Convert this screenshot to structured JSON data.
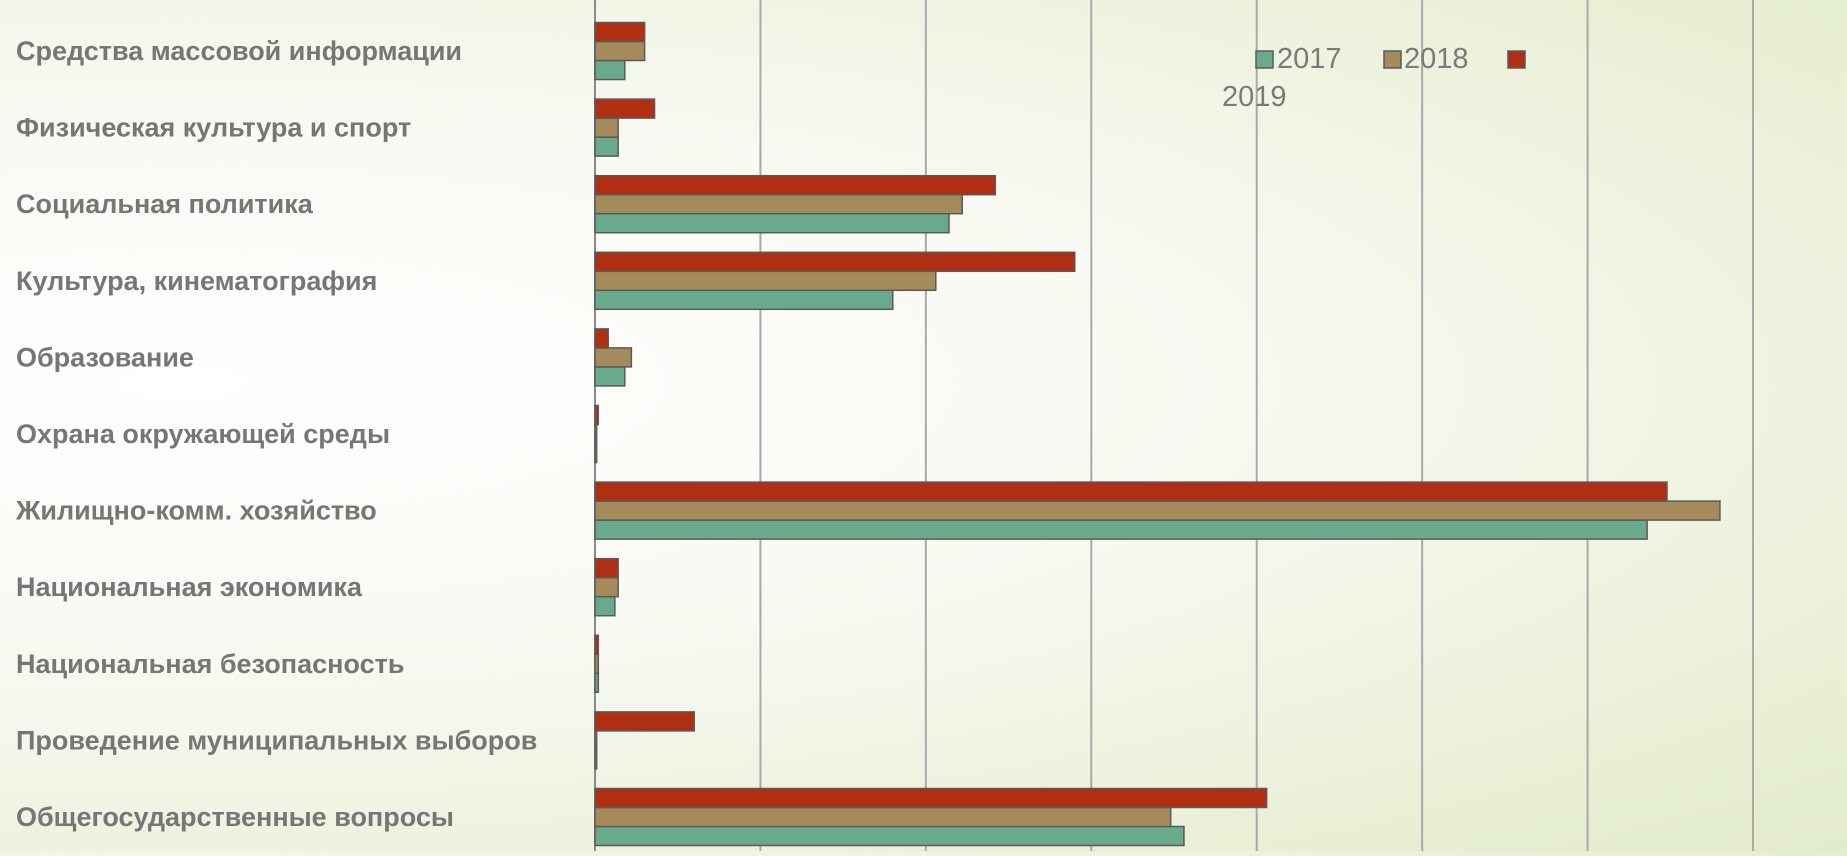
{
  "chart_data": {
    "type": "bar",
    "orientation": "horizontal",
    "title": "",
    "xlabel": "",
    "ylabel": "",
    "grid": true,
    "legend_position": "top-right",
    "xlim": [
      0,
      350
    ],
    "categories": [
      "Средства массовой информации",
      "Физическая культура и спорт",
      "Социальная политика",
      "Культура, кинематография",
      "Образование",
      "Охрана окружающей среды",
      "Жилищно-комм. хозяйство",
      "Национальная экономика",
      "Национальная безопасность",
      "Проведение муниципальных выборов",
      "Общегосударственные вопросы"
    ],
    "series": [
      {
        "name": "2017",
        "color": "#6aaa8c",
        "values": [
          9,
          7,
          107,
          90,
          9,
          0.5,
          318,
          6,
          1,
          0.5,
          178
        ]
      },
      {
        "name": "2018",
        "color": "#a58a5b",
        "values": [
          15,
          7,
          111,
          103,
          11,
          0.5,
          340,
          7,
          1,
          0.5,
          174
        ]
      },
      {
        "name": "2019",
        "color": "#b02e12",
        "values": [
          15,
          18,
          121,
          145,
          4,
          1,
          324,
          7,
          1,
          30,
          203
        ]
      }
    ]
  }
}
